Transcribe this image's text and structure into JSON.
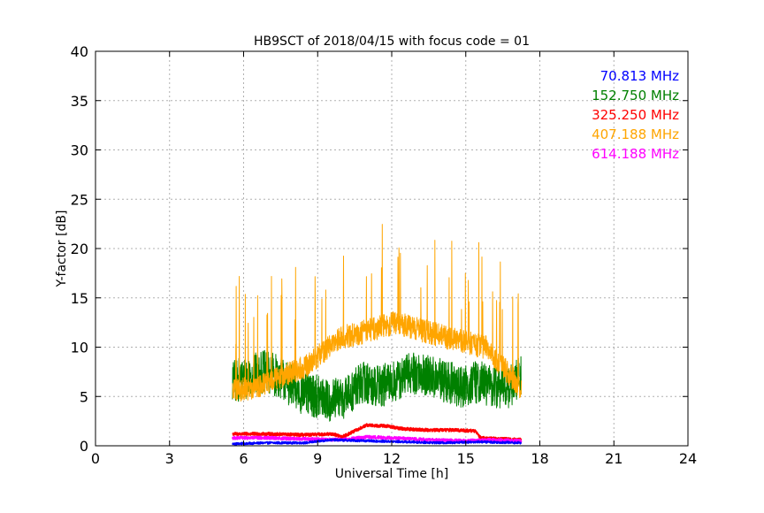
{
  "chart_data": {
    "type": "line",
    "title": "HB9SCT of 2018/04/15 with focus code = 01",
    "xlabel": "Universal Time [h]",
    "ylabel": "Y-factor [dB]",
    "xlim": [
      0,
      24
    ],
    "ylim": [
      0,
      40
    ],
    "xticks": [
      0,
      3,
      6,
      9,
      12,
      15,
      18,
      21,
      24
    ],
    "yticks": [
      0,
      5,
      10,
      15,
      20,
      25,
      30,
      35,
      40
    ],
    "grid": true,
    "legend_position": "top-right",
    "time_range": [
      5.55,
      17.25
    ],
    "series": [
      {
        "name": "70.813 MHz",
        "color": "#0000ff",
        "points": [
          [
            5.6,
            0.2
          ],
          [
            7,
            0.3
          ],
          [
            8.5,
            0.3
          ],
          [
            9.5,
            0.6
          ],
          [
            11,
            0.5
          ],
          [
            12.5,
            0.4
          ],
          [
            14,
            0.3
          ],
          [
            15.5,
            0.4
          ],
          [
            17.2,
            0.3
          ]
        ]
      },
      {
        "name": "152.750 MHz",
        "color": "#008000",
        "points": [
          [
            5.6,
            6.5
          ],
          [
            6.2,
            7
          ],
          [
            6.8,
            7.5
          ],
          [
            7.5,
            7
          ],
          [
            8.2,
            5.5
          ],
          [
            9,
            5
          ],
          [
            9.5,
            4.5
          ],
          [
            10.2,
            5
          ],
          [
            10.8,
            6.5
          ],
          [
            11.5,
            6
          ],
          [
            12.2,
            6.5
          ],
          [
            12.8,
            7.5
          ],
          [
            13.5,
            7
          ],
          [
            14.2,
            6.5
          ],
          [
            14.8,
            6
          ],
          [
            15.5,
            6.5
          ],
          [
            16.2,
            6
          ],
          [
            16.8,
            6
          ],
          [
            17.2,
            7
          ]
        ]
      },
      {
        "name": "325.250 MHz",
        "color": "#ff0000",
        "points": [
          [
            5.6,
            1.2
          ],
          [
            7,
            1.2
          ],
          [
            8.5,
            1.1
          ],
          [
            9.6,
            1.2
          ],
          [
            10,
            0.9
          ],
          [
            10.5,
            1.5
          ],
          [
            11,
            2.1
          ],
          [
            11.8,
            2.0
          ],
          [
            12.5,
            1.7
          ],
          [
            13.5,
            1.6
          ],
          [
            14.5,
            1.6
          ],
          [
            15.4,
            1.5
          ],
          [
            15.6,
            0.8
          ],
          [
            16.5,
            0.7
          ],
          [
            17.2,
            0.6
          ]
        ]
      },
      {
        "name": "407.188 MHz",
        "color": "#ffa500",
        "points": [
          [
            5.6,
            5.5
          ],
          [
            6.5,
            6
          ],
          [
            7.5,
            7
          ],
          [
            8.5,
            8
          ],
          [
            9.2,
            9.5
          ],
          [
            10,
            11
          ],
          [
            10.8,
            11.5
          ],
          [
            11.5,
            12
          ],
          [
            12.2,
            12.5
          ],
          [
            12.8,
            12
          ],
          [
            13.5,
            11.5
          ],
          [
            14.2,
            11
          ],
          [
            15,
            10.5
          ],
          [
            15.8,
            10
          ],
          [
            16.5,
            8
          ],
          [
            17.2,
            6
          ]
        ]
      },
      {
        "name": "614.188 MHz",
        "color": "#ff00ff",
        "points": [
          [
            5.6,
            0.8
          ],
          [
            7,
            0.8
          ],
          [
            8.5,
            0.7
          ],
          [
            10,
            0.6
          ],
          [
            11,
            0.9
          ],
          [
            12,
            0.8
          ],
          [
            13.5,
            0.6
          ],
          [
            15,
            0.5
          ],
          [
            16,
            0.6
          ],
          [
            17.2,
            0.5
          ]
        ]
      }
    ]
  }
}
